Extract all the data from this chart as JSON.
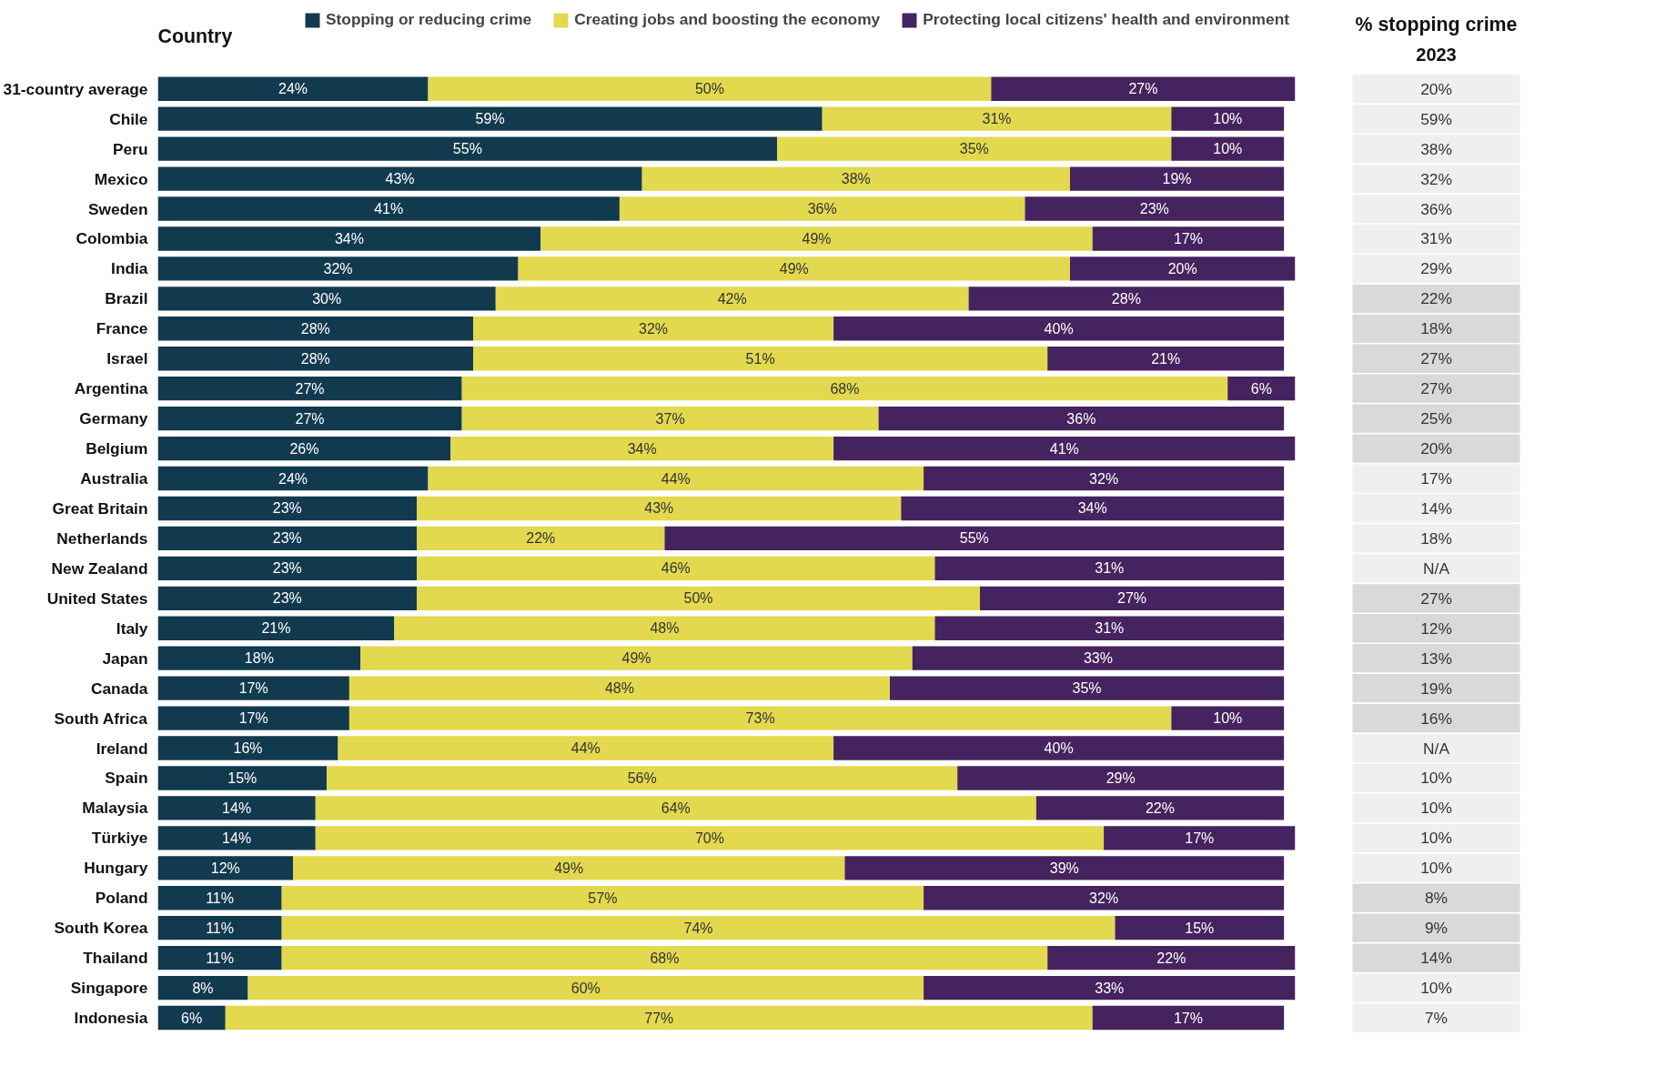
{
  "chart_data": [
    {
      "type": "bar",
      "orientation": "horizontal",
      "stacked": true,
      "legend": "top",
      "grid": false,
      "ylabel": "Country",
      "categories": [
        "31-country average",
        "Chile",
        "Peru",
        "Mexico",
        "Sweden",
        "Colombia",
        "India",
        "Brazil",
        "France",
        "Israel",
        "Argentina",
        "Germany",
        "Belgium",
        "Australia",
        "Great Britain",
        "Netherlands",
        "New Zealand",
        "United States",
        "Italy",
        "Japan",
        "Canada",
        "South Africa",
        "Ireland",
        "Spain",
        "Malaysia",
        "Türkiye",
        "Hungary",
        "Poland",
        "South Korea",
        "Thailand",
        "Singapore",
        "Indonesia"
      ],
      "series": [
        {
          "name": "Stopping or reducing crime",
          "color": "#123a4f",
          "values": [
            24,
            59,
            55,
            43,
            41,
            34,
            32,
            30,
            28,
            28,
            27,
            27,
            26,
            24,
            23,
            23,
            23,
            23,
            21,
            18,
            17,
            17,
            16,
            15,
            14,
            14,
            12,
            11,
            11,
            11,
            8,
            6
          ],
          "value_labels": [
            "24%",
            "59%",
            "55%",
            "43%",
            "41%",
            "34%",
            "32%",
            "30%",
            "28%",
            "28%",
            "27%",
            "27%",
            "26%",
            "24%",
            "23%",
            "23%",
            "23%",
            "23%",
            "21%",
            "18%",
            "17%",
            "17%",
            "16%",
            "15%",
            "14%",
            "14%",
            "12%",
            "11%",
            "11%",
            "11%",
            "8%",
            "6%"
          ]
        },
        {
          "name": "Creating jobs and boosting the economy",
          "color": "#e2d94e",
          "values": [
            50,
            31,
            35,
            38,
            36,
            49,
            49,
            42,
            32,
            51,
            68,
            37,
            34,
            44,
            43,
            22,
            46,
            50,
            48,
            49,
            48,
            73,
            44,
            56,
            64,
            70,
            49,
            57,
            74,
            68,
            60,
            77
          ],
          "value_labels": [
            "50%",
            "31%",
            "35%",
            "38%",
            "36%",
            "49%",
            "49%",
            "42%",
            "32%",
            "51%",
            "68%",
            "37%",
            "34%",
            "44%",
            "43%",
            "22%",
            "46%",
            "50%",
            "48%",
            "49%",
            "48%",
            "73%",
            "44%",
            "56%",
            "64%",
            "70%",
            "49%",
            "57%",
            "74%",
            "68%",
            "60%",
            "77%"
          ]
        },
        {
          "name": "Protecting local citizens' health and environment",
          "color": "#45235f",
          "values": [
            27,
            10,
            10,
            19,
            23,
            17,
            20,
            28,
            40,
            21,
            6,
            36,
            41,
            32,
            34,
            55,
            31,
            27,
            31,
            33,
            35,
            10,
            40,
            29,
            22,
            17,
            39,
            32,
            15,
            22,
            33,
            17
          ],
          "value_labels": [
            "27%",
            "10%",
            "10%",
            "19%",
            "23%",
            "17%",
            "20%",
            "28%",
            "40%",
            "21%",
            "6%",
            "36%",
            "41%",
            "32%",
            "34%",
            "55%",
            "31%",
            "27%",
            "31%",
            "33%",
            "35%",
            "10%",
            "40%",
            "29%",
            "22%",
            "17%",
            "39%",
            "32%",
            "15%",
            "22%",
            "33%",
            "17%"
          ]
        }
      ]
    },
    {
      "type": "other",
      "title": "% stopping crime",
      "subtitle": "2023",
      "annotations": [
        "20%",
        "59%",
        "38%",
        "32%",
        "36%",
        "31%",
        "29%",
        "22%",
        "18%",
        "27%",
        "27%",
        "25%",
        "20%",
        "17%",
        "14%",
        "18%",
        "N/A",
        "27%",
        "12%",
        "13%",
        "19%",
        "16%",
        "N/A",
        "10%",
        "10%",
        "10%",
        "10%",
        "8%",
        "9%",
        "14%",
        "10%",
        "7%"
      ],
      "colors": [
        "#efefef",
        "#efefef",
        "#efefef",
        "#efefef",
        "#efefef",
        "#efefef",
        "#efefef",
        "#d9d9d9",
        "#d9d9d9",
        "#d9d9d9",
        "#d9d9d9",
        "#d9d9d9",
        "#d9d9d9",
        "#efefef",
        "#efefef",
        "#efefef",
        "#efefef",
        "#d9d9d9",
        "#d9d9d9",
        "#d9d9d9",
        "#d9d9d9",
        "#d9d9d9",
        "#efefef",
        "#efefef",
        "#efefef",
        "#efefef",
        "#efefef",
        "#d9d9d9",
        "#d9d9d9",
        "#d9d9d9",
        "#efefef",
        "#efefef"
      ]
    }
  ]
}
